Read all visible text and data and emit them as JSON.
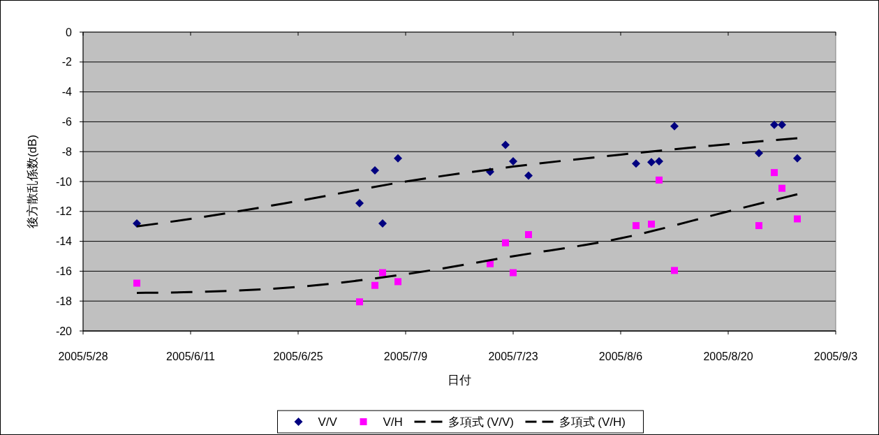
{
  "chart_data": {
    "type": "scatter",
    "xlabel": "日付",
    "ylabel": "後方散乱係数(dB)",
    "xlim": [
      "2005-05-28",
      "2005-09-03"
    ],
    "xticks": [
      {
        "value": "2005-05-28",
        "label": "2005/5/28"
      },
      {
        "value": "2005-06-11",
        "label": "2005/6/11"
      },
      {
        "value": "2005-06-25",
        "label": "2005/6/25"
      },
      {
        "value": "2005-07-09",
        "label": "2005/7/9"
      },
      {
        "value": "2005-07-23",
        "label": "2005/7/23"
      },
      {
        "value": "2005-08-06",
        "label": "2005/8/6"
      },
      {
        "value": "2005-08-20",
        "label": "2005/8/20"
      },
      {
        "value": "2005-09-03",
        "label": "2005/9/3"
      }
    ],
    "ylim": [
      -20,
      0
    ],
    "yticks": [
      0,
      -2,
      -4,
      -6,
      -8,
      -10,
      -12,
      -14,
      -16,
      -18,
      -20
    ],
    "grid": "y",
    "legend": "bottom",
    "series": [
      {
        "name": "V/V",
        "type": "scatter",
        "marker": "diamond",
        "color": "#000080",
        "x": [
          "2005-06-04",
          "2005-07-03",
          "2005-07-05",
          "2005-07-06",
          "2005-07-08",
          "2005-07-20",
          "2005-07-22",
          "2005-07-23",
          "2005-07-25",
          "2005-08-08",
          "2005-08-10",
          "2005-08-11",
          "2005-08-13",
          "2005-08-24",
          "2005-08-26",
          "2005-08-27",
          "2005-08-29"
        ],
        "values": [
          -12.8,
          -11.45,
          -9.25,
          -12.8,
          -8.45,
          -9.35,
          -7.55,
          -8.65,
          -9.6,
          -8.8,
          -8.7,
          -8.65,
          -6.3,
          -8.1,
          -6.2,
          -6.2,
          -8.45
        ]
      },
      {
        "name": "V/H",
        "type": "scatter",
        "marker": "square",
        "color": "#ff00ff",
        "x": [
          "2005-06-04",
          "2005-07-03",
          "2005-07-05",
          "2005-07-06",
          "2005-07-08",
          "2005-07-20",
          "2005-07-22",
          "2005-07-23",
          "2005-07-25",
          "2005-08-08",
          "2005-08-10",
          "2005-08-11",
          "2005-08-13",
          "2005-08-24",
          "2005-08-26",
          "2005-08-27",
          "2005-08-29"
        ],
        "values": [
          -16.8,
          -18.05,
          -16.95,
          -16.1,
          -16.7,
          -15.5,
          -14.1,
          -16.1,
          -13.55,
          -12.95,
          -12.85,
          -9.9,
          -15.95,
          -12.95,
          -9.4,
          -10.45,
          -12.5
        ]
      },
      {
        "name": "多項式 (V/V)",
        "type": "line",
        "marker": "none",
        "line_style": "dashed",
        "color": "#000000",
        "x": [
          "2005-06-04",
          "2005-06-11",
          "2005-06-25",
          "2005-07-09",
          "2005-07-23",
          "2005-08-06",
          "2005-08-20",
          "2005-08-29"
        ],
        "values": [
          -13.0,
          -12.5,
          -11.3,
          -10.0,
          -9.0,
          -8.2,
          -7.5,
          -7.1
        ]
      },
      {
        "name": "多項式 (V/H)",
        "type": "line",
        "marker": "none",
        "line_style": "dashed",
        "color": "#000000",
        "x": [
          "2005-06-04",
          "2005-06-11",
          "2005-06-25",
          "2005-07-09",
          "2005-07-23",
          "2005-08-06",
          "2005-08-20",
          "2005-08-29"
        ],
        "values": [
          -17.45,
          -17.4,
          -17.05,
          -16.2,
          -15.0,
          -13.8,
          -12.0,
          -10.85
        ]
      }
    ]
  }
}
